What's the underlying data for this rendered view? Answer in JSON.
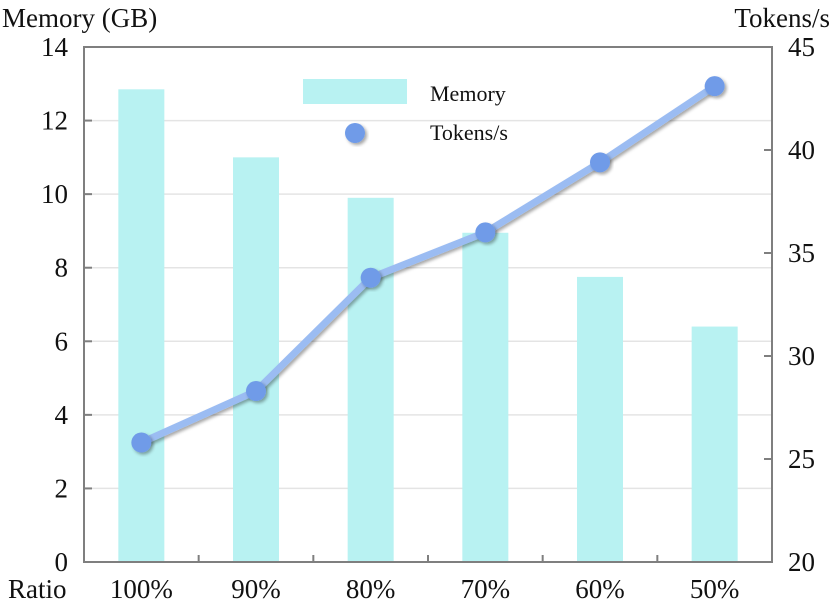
{
  "chart_data": {
    "type": "bar+line",
    "categories": [
      "100%",
      "90%",
      "80%",
      "70%",
      "60%",
      "50%"
    ],
    "xlabel": "Ratio",
    "y_left": {
      "label": "Memory (GB)",
      "lim": [
        0,
        14
      ],
      "ticks": [
        "0",
        "2",
        "4",
        "6",
        "8",
        "10",
        "12",
        "14"
      ]
    },
    "y_right": {
      "label": "Tokens/s",
      "lim": [
        20,
        45
      ],
      "ticks": [
        "20",
        "25",
        "30",
        "35",
        "40",
        "45"
      ]
    },
    "series": [
      {
        "name": "Memory",
        "type": "bar",
        "axis": "left",
        "color": "#b8f2f2",
        "values": [
          12.85,
          11.0,
          9.9,
          8.95,
          7.75,
          6.4
        ]
      },
      {
        "name": "Tokens/s",
        "type": "line",
        "axis": "right",
        "line_color": "#9bbcf2",
        "marker_color": "#6f9be8",
        "values": [
          25.8,
          28.3,
          33.8,
          36.0,
          39.4,
          43.1
        ]
      }
    ],
    "grid": true,
    "legend_position": "top-center"
  }
}
